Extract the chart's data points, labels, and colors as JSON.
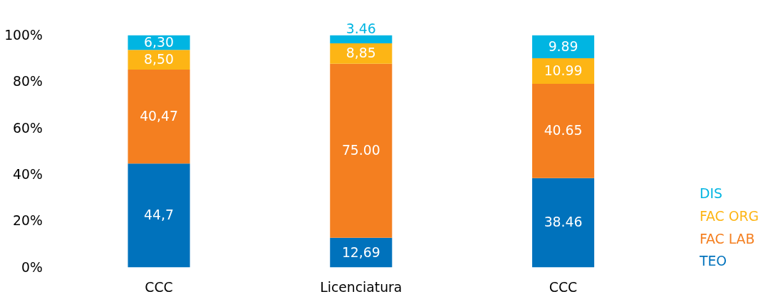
{
  "chart_data": {
    "type": "bar",
    "stacked": true,
    "categories": [
      "CCC",
      "Licenciatura",
      "CCC"
    ],
    "series": [
      {
        "name": "TEO",
        "color": "#0072bc",
        "values": [
          44.7,
          12.69,
          38.46
        ],
        "value_labels": [
          "44,7",
          "12,69",
          "38.46"
        ]
      },
      {
        "name": "FAC LAB",
        "color": "#f47f20",
        "values": [
          40.47,
          75.0,
          40.65
        ],
        "value_labels": [
          "40,47",
          "75.00",
          "40.65"
        ]
      },
      {
        "name": "FAC ORG",
        "color": "#fdb515",
        "values": [
          8.5,
          8.85,
          10.99
        ],
        "value_labels": [
          "8,50",
          "8,85",
          "10.99"
        ]
      },
      {
        "name": "DIS",
        "color": "#00b5e2",
        "values": [
          6.3,
          3.46,
          9.89
        ],
        "value_labels": [
          "6,30",
          "3.46",
          "9.89"
        ]
      }
    ],
    "ylim": [
      0,
      100
    ],
    "yticks": [
      {
        "value": 0,
        "label": "0%"
      },
      {
        "value": 20,
        "label": "20%"
      },
      {
        "value": 40,
        "label": "40%"
      },
      {
        "value": 60,
        "label": "60%"
      },
      {
        "value": 80,
        "label": "80%"
      },
      {
        "value": 100,
        "label": "100%"
      }
    ],
    "grid": false,
    "legend": "right"
  }
}
